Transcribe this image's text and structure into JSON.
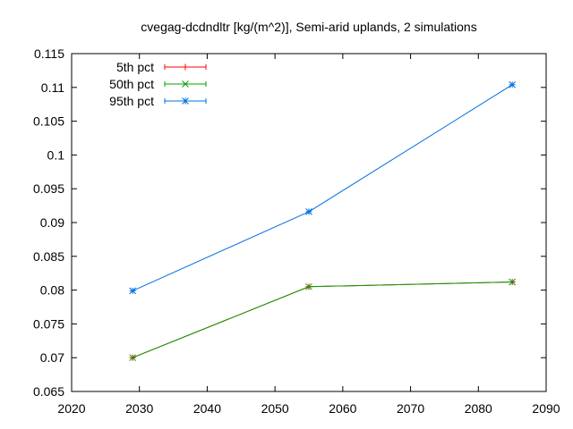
{
  "chart_data": {
    "type": "line",
    "title": "cvegag-dcdndltr [kg/(m^2)], Semi-arid uplands, 2 simulations",
    "xlabel": "",
    "ylabel": "",
    "xlim": [
      2020,
      2090
    ],
    "ylim": [
      0.065,
      0.115
    ],
    "xticks": [
      2020,
      2030,
      2040,
      2050,
      2060,
      2070,
      2080,
      2090
    ],
    "yticks": [
      0.065,
      0.07,
      0.075,
      0.08,
      0.085,
      0.09,
      0.095,
      0.1,
      0.105,
      0.11,
      0.115
    ],
    "xtick_labels": [
      "2020",
      "2030",
      "2040",
      "2050",
      "2060",
      "2070",
      "2080",
      "2090"
    ],
    "ytick_labels": [
      "0.065",
      "0.07",
      "0.075",
      "0.08",
      "0.085",
      "0.09",
      "0.095",
      "0.1",
      "0.105",
      "0.11",
      "0.115"
    ],
    "grid": false,
    "legend_position": "top-left",
    "x": [
      2029,
      2055,
      2085
    ],
    "series": [
      {
        "name": "5th pct",
        "values": [
          0.07,
          0.0805,
          0.0812
        ],
        "color": "#ff0000",
        "marker": "plus"
      },
      {
        "name": "50th pct",
        "values": [
          0.07,
          0.0805,
          0.0812
        ],
        "color": "#00a000",
        "marker": "cross"
      },
      {
        "name": "95th pct",
        "values": [
          0.0799,
          0.0916,
          0.1104
        ],
        "color": "#0070e0",
        "marker": "star"
      }
    ]
  }
}
